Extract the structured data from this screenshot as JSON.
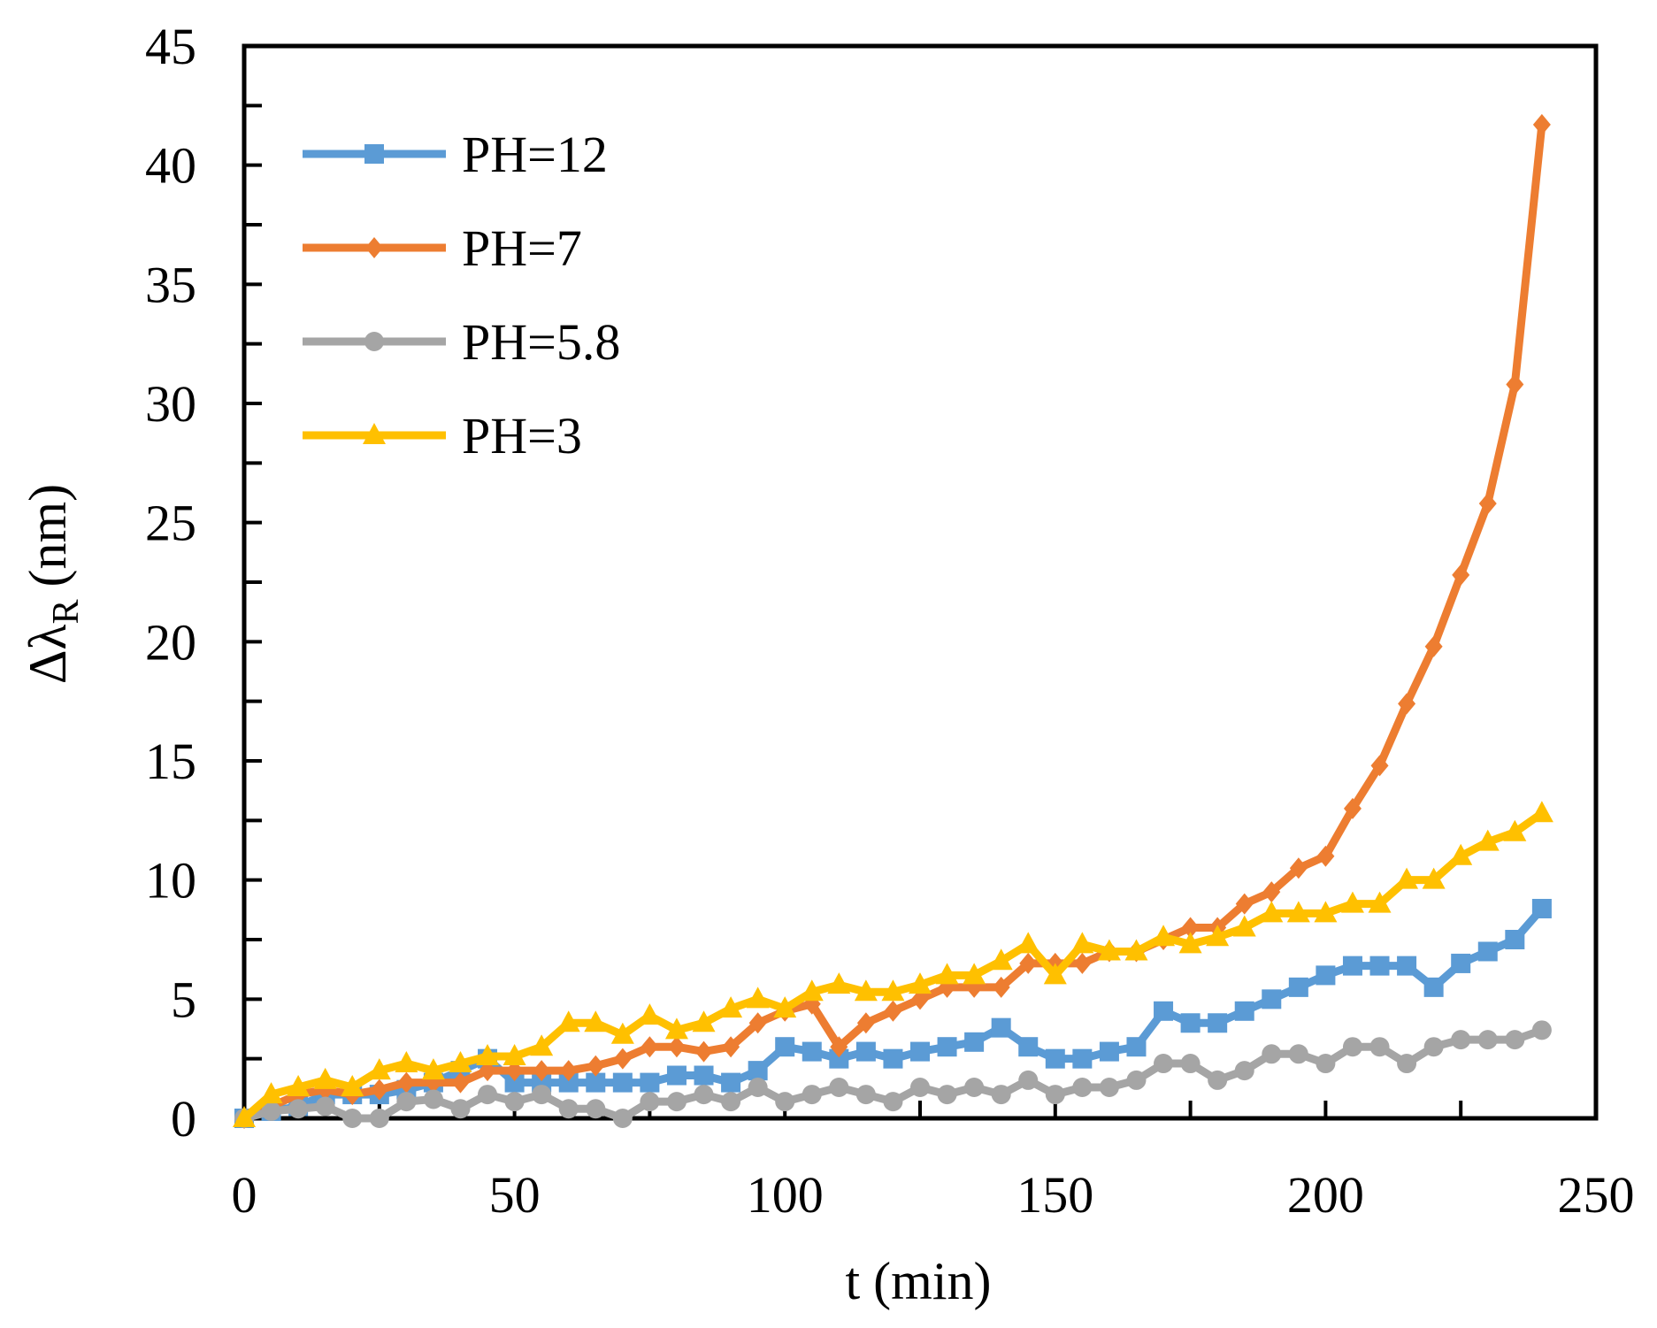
{
  "chart_data": {
    "type": "line",
    "xlabel": "t (min)",
    "ylabel": {
      "main": "Δλ",
      "sub": "R",
      "unit": "(nm)"
    },
    "x": [
      0,
      5,
      10,
      15,
      20,
      25,
      30,
      35,
      40,
      45,
      50,
      55,
      60,
      65,
      70,
      75,
      80,
      85,
      90,
      95,
      100,
      105,
      110,
      115,
      120,
      125,
      130,
      135,
      140,
      145,
      150,
      155,
      160,
      165,
      170,
      175,
      180,
      185,
      190,
      195,
      200,
      205,
      210,
      215,
      220,
      225,
      230,
      235,
      240
    ],
    "series": [
      {
        "name": "PH=12",
        "color": "#5b9bd5",
        "marker": "square",
        "values": [
          0,
          0.3,
          0.5,
          1.0,
          1.0,
          1.0,
          1.2,
          1.5,
          2.0,
          2.5,
          1.5,
          1.5,
          1.5,
          1.5,
          1.5,
          1.5,
          1.8,
          1.8,
          1.5,
          2.0,
          3.0,
          2.8,
          2.5,
          2.8,
          2.5,
          2.8,
          3.0,
          3.2,
          3.8,
          3.0,
          2.5,
          2.5,
          2.8,
          3.0,
          4.5,
          4.0,
          4.0,
          4.5,
          5.0,
          5.5,
          6.0,
          6.4,
          6.4,
          6.4,
          5.5,
          6.5,
          7.0,
          7.5,
          8.8
        ]
      },
      {
        "name": "PH=7",
        "color": "#ed7d31",
        "marker": "diamond",
        "values": [
          0,
          0.5,
          1.0,
          1.2,
          1.0,
          1.2,
          1.5,
          1.5,
          1.5,
          2.0,
          2.0,
          2.0,
          2.0,
          2.2,
          2.5,
          3.0,
          3.0,
          2.8,
          3.0,
          4.0,
          4.5,
          4.8,
          3.0,
          4.0,
          4.5,
          5.0,
          5.5,
          5.5,
          5.5,
          6.5,
          6.5,
          6.5,
          7.0,
          7.0,
          7.5,
          8.0,
          8.0,
          9.0,
          9.5,
          10.5,
          11.0,
          13.0,
          14.8,
          17.4,
          19.8,
          22.8,
          25.8,
          30.8,
          41.7
        ]
      },
      {
        "name": "PH=5.8",
        "color": "#a5a5a5",
        "marker": "circle",
        "values": [
          0,
          0.3,
          0.4,
          0.5,
          0.0,
          0.0,
          0.7,
          0.8,
          0.4,
          1.0,
          0.7,
          1.0,
          0.4,
          0.4,
          0.0,
          0.7,
          0.7,
          1.0,
          0.7,
          1.3,
          0.7,
          1.0,
          1.3,
          1.0,
          0.7,
          1.3,
          1.0,
          1.3,
          1.0,
          1.6,
          1.0,
          1.3,
          1.3,
          1.6,
          2.3,
          2.3,
          1.6,
          2.0,
          2.7,
          2.7,
          2.3,
          3.0,
          3.0,
          2.3,
          3.0,
          3.3,
          3.3,
          3.3,
          3.7
        ]
      },
      {
        "name": "PH=3",
        "color": "#ffc000",
        "marker": "triangle",
        "values": [
          0,
          1.0,
          1.3,
          1.6,
          1.3,
          2.0,
          2.3,
          2.0,
          2.3,
          2.6,
          2.6,
          3.0,
          4.0,
          4.0,
          3.5,
          4.3,
          3.7,
          4.0,
          4.6,
          5.0,
          4.6,
          5.3,
          5.6,
          5.3,
          5.3,
          5.6,
          6.0,
          6.0,
          6.6,
          7.3,
          6.0,
          7.3,
          7.0,
          7.0,
          7.6,
          7.3,
          7.6,
          8.0,
          8.6,
          8.6,
          8.6,
          9.0,
          9.0,
          10.0,
          10.0,
          11.0,
          11.6,
          12.0,
          12.8
        ]
      }
    ],
    "xlim": [
      0,
      250
    ],
    "xticks": [
      0,
      50,
      100,
      150,
      200,
      250
    ],
    "ylim": [
      0,
      45
    ],
    "yticks": [
      0,
      5,
      10,
      15,
      20,
      25,
      30,
      35,
      40,
      45
    ],
    "grid": false,
    "legend": "upper left"
  }
}
